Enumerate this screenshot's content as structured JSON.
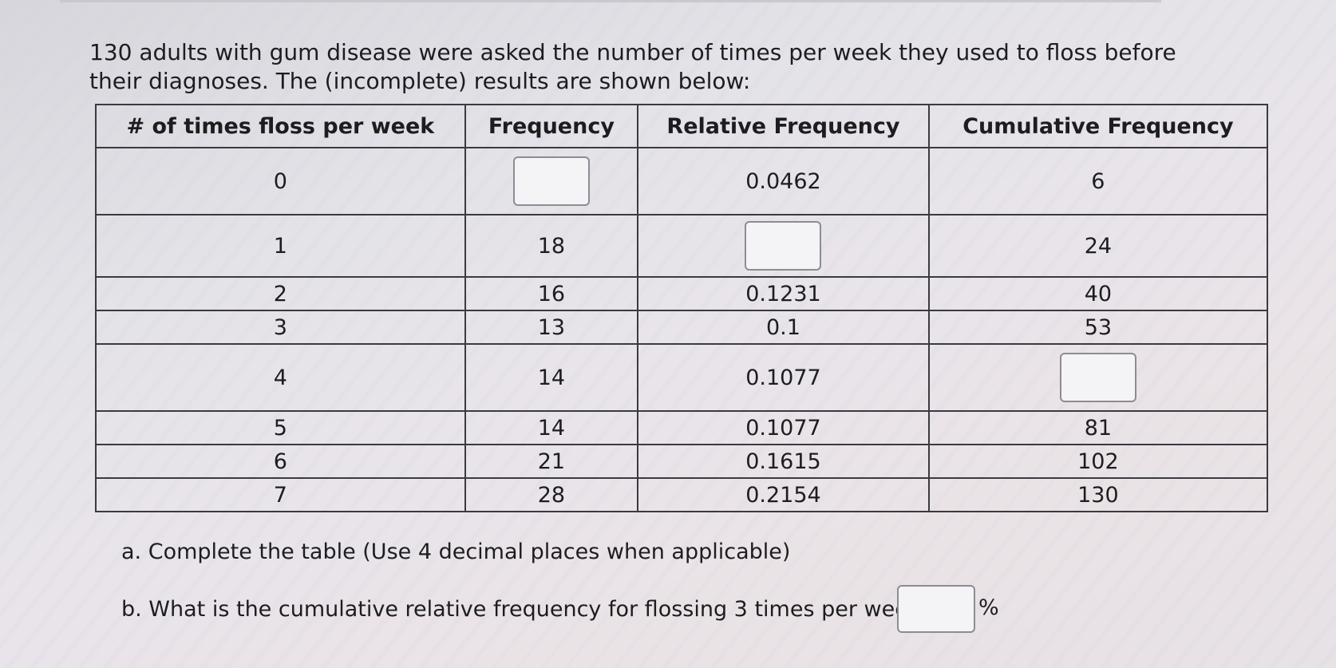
{
  "question": {
    "prompt": "130 adults with gum disease were asked the number of times per week they used to floss before their diagnoses. The (incomplete) results are shown below:"
  },
  "table": {
    "headers": [
      "# of times floss per week",
      "Frequency",
      "Relative Frequency",
      "Cumulative Frequency"
    ],
    "rows": [
      {
        "times": "0",
        "frequency": "",
        "relative": "0.0462",
        "cumulative": "6"
      },
      {
        "times": "1",
        "frequency": "18",
        "relative": "",
        "cumulative": "24"
      },
      {
        "times": "2",
        "frequency": "16",
        "relative": "0.1231",
        "cumulative": "40"
      },
      {
        "times": "3",
        "frequency": "13",
        "relative": "0.1",
        "cumulative": "53"
      },
      {
        "times": "4",
        "frequency": "14",
        "relative": "0.1077",
        "cumulative": ""
      },
      {
        "times": "5",
        "frequency": "14",
        "relative": "0.1077",
        "cumulative": "81"
      },
      {
        "times": "6",
        "frequency": "21",
        "relative": "0.1615",
        "cumulative": "102"
      },
      {
        "times": "7",
        "frequency": "28",
        "relative": "0.2154",
        "cumulative": "130"
      }
    ]
  },
  "parts": {
    "a": "a. Complete the table (Use 4 decimal places when applicable)",
    "b": "b. What is the cumulative relative frequency for flossing 3 times per week?",
    "b_unit": "%",
    "b_answer": ""
  }
}
